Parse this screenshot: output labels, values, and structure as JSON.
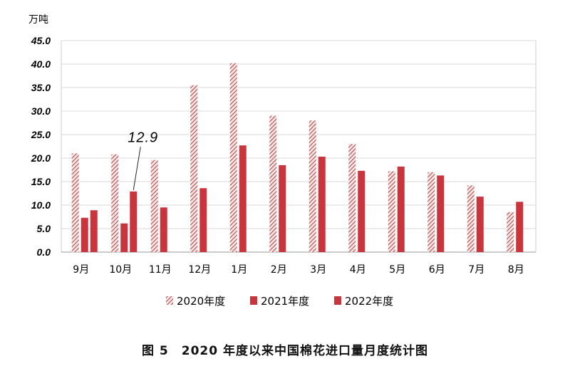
{
  "caption": {
    "figure_no": "图 5",
    "text": "2020 年度以来中国棉花进口量月度统计图"
  },
  "chart_data": {
    "type": "bar",
    "unit_label": "万吨",
    "categories": [
      "9月",
      "10月",
      "11月",
      "12月",
      "1月",
      "2月",
      "3月",
      "4月",
      "5月",
      "6月",
      "7月",
      "8月"
    ],
    "series": [
      {
        "name": "2020年度",
        "values": [
          21.0,
          20.8,
          19.6,
          35.5,
          40.2,
          29.0,
          28.0,
          23.0,
          17.2,
          17.0,
          14.2,
          8.5
        ],
        "pattern": "hatched",
        "color": "#b04444"
      },
      {
        "name": "2021年度",
        "values": [
          7.3,
          6.1,
          9.5,
          13.6,
          22.7,
          18.5,
          20.3,
          17.3,
          18.2,
          16.3,
          11.8,
          10.7
        ],
        "pattern": "solid",
        "color": "#c8353c"
      },
      {
        "name": "2022年度",
        "values": [
          8.9,
          12.9,
          null,
          null,
          null,
          null,
          null,
          null,
          null,
          null,
          null,
          null
        ],
        "pattern": "solid",
        "color": "#c8353c"
      }
    ],
    "ylim": [
      0,
      45
    ],
    "yticks": [
      "0.0",
      "5.0",
      "10.0",
      "15.0",
      "20.0",
      "25.0",
      "30.0",
      "35.0",
      "40.0",
      "45.0"
    ],
    "ytick_values": [
      0,
      5,
      10,
      15,
      20,
      25,
      30,
      35,
      40,
      45
    ],
    "grid": true,
    "legend_position": "bottom",
    "annotation": {
      "text": "12.9",
      "series": "2022年度",
      "category": "10月"
    }
  }
}
